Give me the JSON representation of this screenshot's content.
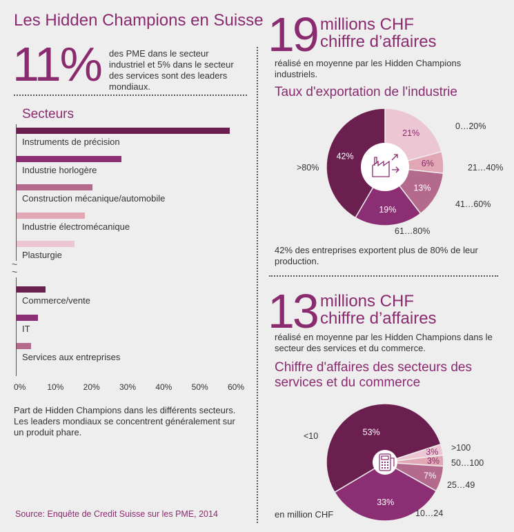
{
  "header": {
    "title": "Les Hidden Champions en Suisse"
  },
  "intro": {
    "big_value": "11%",
    "text": "des PME dans le secteur industriel et 5% dans le secteur des services sont des leaders mondiaux."
  },
  "industry": {
    "big_value": "19",
    "big_unit_line1": "millions CHF",
    "big_unit_line2": "chiffre d’affaires",
    "text": "réalisé en moyenne par les Hidden Champions industriels.",
    "note": "42% des entreprises exportent plus de 80% de leur production."
  },
  "services": {
    "big_value": "13",
    "big_unit_line1": "millions CHF",
    "big_unit_line2": "chiffre d’affaires",
    "text": "réalisé en moyenne par les Hidden Champions dans le secteur des services et du commerce.",
    "unit_note": "en million CHF"
  },
  "bar_caption": "Part de Hidden Champions dans les différents secteurs. Les leaders mondiaux se concentrent généralement sur un produit phare.",
  "source": "Source: Enquête de Credit Suisse sur les PME, 2014",
  "colors": {
    "c1": "#6b1f4f",
    "c2": "#8c2e73",
    "c3": "#b36a8c",
    "c4": "#e1a7b4",
    "c5": "#ecc6d3"
  },
  "chart_data": [
    {
      "type": "bar",
      "title": "Secteurs",
      "categories": [
        "Instruments de précision",
        "Industrie horlogère",
        "Construction mécanique/automobile",
        "Industrie électromécanique",
        "Plasturgie",
        "Commerce/vente",
        "IT",
        "Services aux entreprises"
      ],
      "values": [
        59,
        29,
        21,
        19,
        16,
        8,
        6,
        4
      ],
      "colors": [
        "#6b1f4f",
        "#8c2e73",
        "#b36a8c",
        "#e1a7b4",
        "#ecc6d3",
        "#6b1f4f",
        "#8c2e73",
        "#b36a8c"
      ],
      "xlim": [
        0,
        60
      ],
      "ticks": [
        "0%",
        "10%",
        "20%",
        "30%",
        "40%",
        "50%",
        "60%"
      ],
      "axis_break": "~"
    },
    {
      "type": "pie",
      "title": "Taux d'exportation de l'industrie",
      "slices": [
        {
          "label": "0…20%",
          "value": 21,
          "text": "21%",
          "color": "#ecc6d3"
        },
        {
          "label": "21…40%",
          "value": 6,
          "text": "6%",
          "color": "#e1a7b4"
        },
        {
          "label": "41…60%",
          "value": 13,
          "text": "13%",
          "color": "#b36a8c"
        },
        {
          "label": "61…80%",
          "value": 19,
          "text": "19%",
          "color": "#8c2e73"
        },
        {
          "label": ">80%",
          "value": 42,
          "text": "42%",
          "color": "#6b1f4f"
        }
      ]
    },
    {
      "type": "pie",
      "title": "Chiffre d'affaires des secteurs des services et du commerce",
      "slices": [
        {
          "label": ">100",
          "value": 3,
          "text": "3%",
          "color": "#ecc6d3"
        },
        {
          "label": "50…100",
          "value": 3,
          "text": "3%",
          "color": "#e1a7b4"
        },
        {
          "label": "25…49",
          "value": 7,
          "text": "7%",
          "color": "#b36a8c"
        },
        {
          "label": "10…24",
          "value": 33,
          "text": "33%",
          "color": "#8c2e73"
        },
        {
          "label": "<10",
          "value": 53,
          "text": "53%",
          "color": "#6b1f4f"
        }
      ]
    }
  ]
}
